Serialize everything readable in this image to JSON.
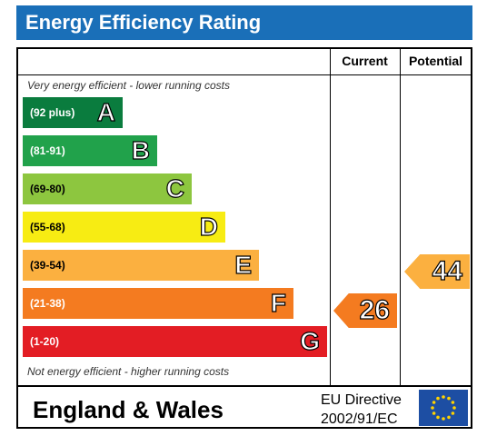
{
  "title": "Energy Efficiency Rating",
  "columns": {
    "current": "Current",
    "potential": "Potential"
  },
  "notes": {
    "top": "Very energy efficient - lower running costs",
    "bottom": "Not energy efficient - higher running costs"
  },
  "bands": [
    {
      "range": "(92 plus)",
      "letter": "A",
      "color": "#0a7c3e"
    },
    {
      "range": "(81-91)",
      "letter": "B",
      "color": "#21a24b"
    },
    {
      "range": "(69-80)",
      "letter": "C",
      "color": "#8dc63f"
    },
    {
      "range": "(55-68)",
      "letter": "D",
      "color": "#f7ec13"
    },
    {
      "range": "(39-54)",
      "letter": "E",
      "color": "#fbb040"
    },
    {
      "range": "(21-38)",
      "letter": "F",
      "color": "#f47b20"
    },
    {
      "range": "(1-20)",
      "letter": "G",
      "color": "#e31d24"
    }
  ],
  "ratings": {
    "current": {
      "value": "26",
      "color": "#f47b20"
    },
    "potential": {
      "value": "44",
      "color": "#fbb040"
    }
  },
  "footer": {
    "region": "England & Wales",
    "directive_line1": "EU Directive",
    "directive_line2": "2002/91/EC",
    "flag_icon": "eu-flag-icon"
  }
}
